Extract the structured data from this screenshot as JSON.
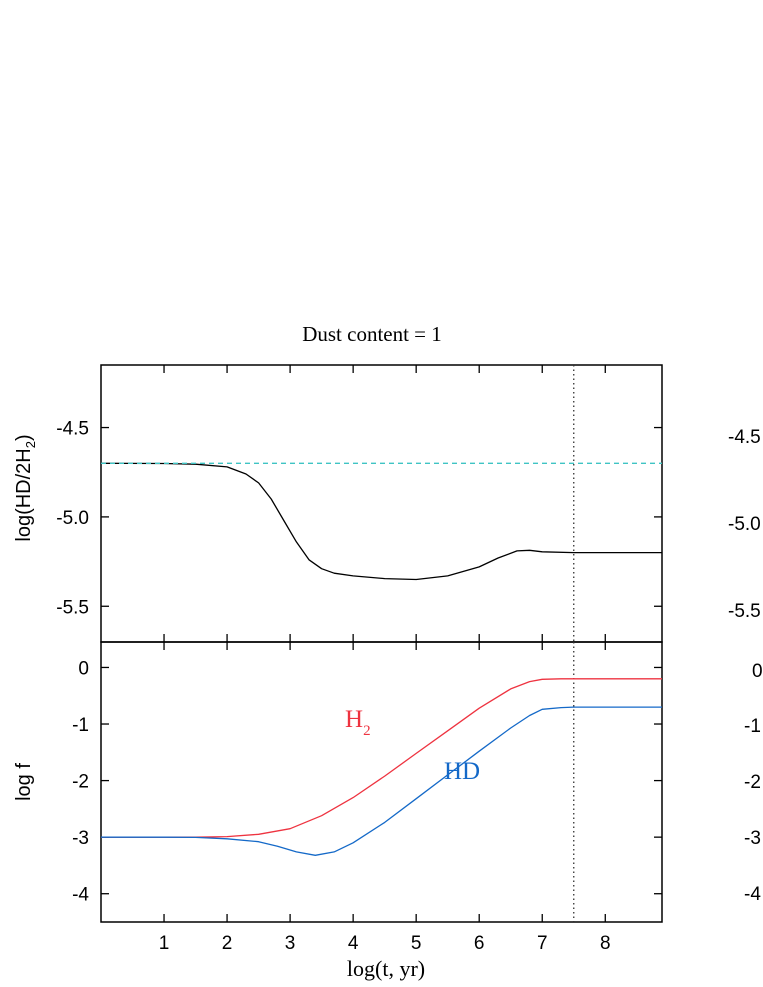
{
  "chart_data": [
    {
      "type": "line",
      "title": "Dust content = 1",
      "ylabel": "log(HD/2H2)",
      "ylabel_parts": {
        "base": "log(HD/2H",
        "sub": "2",
        "close": ")"
      },
      "xlim": [
        0,
        8.9
      ],
      "ylim": [
        -5.7,
        -4.15
      ],
      "yticks": [
        -4.5,
        -5.0,
        -5.5
      ],
      "ytick_labels": [
        "-4.5",
        "-5.0",
        "-5.5"
      ],
      "xticks": [
        1,
        2,
        3,
        4,
        5,
        6,
        7,
        8
      ],
      "vline_x": 7.5,
      "series": [
        {
          "key": "ratio",
          "color": "#000000",
          "style": "solid",
          "x": [
            0,
            1,
            1.5,
            2,
            2.3,
            2.5,
            2.7,
            2.9,
            3.1,
            3.3,
            3.5,
            3.7,
            4.0,
            4.5,
            5.0,
            5.5,
            6.0,
            6.3,
            6.6,
            6.8,
            7.0,
            7.5,
            8.0,
            8.9
          ],
          "y": [
            -4.7,
            -4.701,
            -4.705,
            -4.72,
            -4.76,
            -4.81,
            -4.9,
            -5.02,
            -5.14,
            -5.24,
            -5.29,
            -5.315,
            -5.33,
            -5.345,
            -5.35,
            -5.33,
            -5.28,
            -5.23,
            -5.19,
            -5.187,
            -5.195,
            -5.2,
            -5.2,
            -5.2
          ]
        },
        {
          "key": "reference",
          "color": "#3fc4c4",
          "style": "dashed",
          "x": [
            0,
            8.9
          ],
          "y": [
            -4.7,
            -4.7
          ]
        }
      ]
    },
    {
      "type": "line",
      "xlabel": "log(t, yr)",
      "ylabel": "log f",
      "xlim": [
        0,
        8.9
      ],
      "ylim": [
        -4.5,
        0.45
      ],
      "yticks": [
        0,
        -1,
        -2,
        -3,
        -4
      ],
      "ytick_labels": [
        "0",
        "-1",
        "-2",
        "-3",
        "-4"
      ],
      "xticks": [
        1,
        2,
        3,
        4,
        5,
        6,
        7,
        8
      ],
      "xtick_labels": [
        "1",
        "2",
        "3",
        "4",
        "5",
        "6",
        "7",
        "8"
      ],
      "vline_x": 7.5,
      "series": [
        {
          "name": "H2",
          "label_parts": {
            "base": "H",
            "sub": "2"
          },
          "color": "#ee3340",
          "x": [
            0,
            1,
            1.5,
            2,
            2.5,
            3.0,
            3.5,
            4.0,
            4.5,
            5.0,
            5.5,
            6.0,
            6.5,
            6.8,
            7.0,
            7.3,
            7.5,
            8.0,
            8.9
          ],
          "y": [
            -3.0,
            -3.0,
            -3.0,
            -2.99,
            -2.95,
            -2.85,
            -2.62,
            -2.3,
            -1.92,
            -1.52,
            -1.12,
            -0.72,
            -0.38,
            -0.25,
            -0.21,
            -0.2,
            -0.2,
            -0.2,
            -0.2
          ]
        },
        {
          "name": "HD",
          "color": "#1469c8",
          "x": [
            0,
            1,
            1.5,
            2,
            2.5,
            2.8,
            3.1,
            3.4,
            3.7,
            4.0,
            4.5,
            5.0,
            5.5,
            6.0,
            6.5,
            6.8,
            7.0,
            7.3,
            7.5,
            8.0,
            8.9
          ],
          "y": [
            -3.0,
            -3.0,
            -3.005,
            -3.03,
            -3.08,
            -3.16,
            -3.26,
            -3.32,
            -3.26,
            -3.1,
            -2.74,
            -2.32,
            -1.9,
            -1.48,
            -1.07,
            -0.85,
            -0.74,
            -0.71,
            -0.7,
            -0.7,
            -0.7
          ]
        }
      ]
    },
    {
      "type": "line",
      "note_visible": "partially visible second column (clipped at right edge)",
      "ytick_labels_top": [
        "-4.5",
        "-5.0",
        "-5.5"
      ],
      "ytick_labels_bottom": [
        "0",
        "-1",
        "-2",
        "-3",
        "-4"
      ]
    }
  ]
}
